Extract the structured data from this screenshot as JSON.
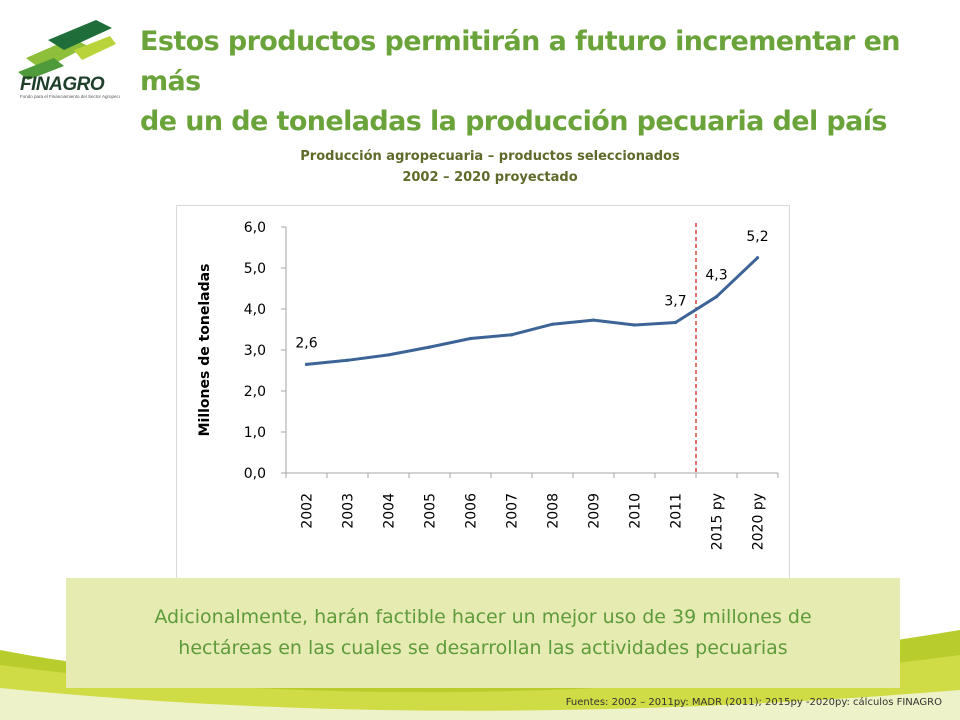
{
  "brand": {
    "name": "FINAGRO",
    "tagline": "Fondo para el Financiamiento del Sector Agropecuario"
  },
  "header": {
    "title_line1": "Estos productos permitirán a futuro incrementar en más",
    "title_line2": "de un de toneladas la producción pecuaria del país"
  },
  "chart_data": {
    "type": "line",
    "title": "Producción agropecuaria – productos seleccionados",
    "subtitle": "2002 – 2020 proyectado",
    "ylabel": "Millones de toneladas",
    "xlabel": "",
    "categories": [
      "2002",
      "2003",
      "2004",
      "2005",
      "2006",
      "2007",
      "2008",
      "2009",
      "2010",
      "2011",
      "2015 py",
      "2020 py"
    ],
    "series": [
      {
        "values": [
          2.65,
          2.75,
          2.88,
          3.07,
          3.28,
          3.37,
          3.63,
          3.73,
          3.61,
          3.67,
          4.3,
          5.25
        ]
      }
    ],
    "data_labels": [
      {
        "index": 0,
        "text": "2,6"
      },
      {
        "index": 9,
        "text": "3,7"
      },
      {
        "index": 10,
        "text": "4,3"
      },
      {
        "index": 11,
        "text": "5,2"
      }
    ],
    "yticks": [
      "0,0",
      "1,0",
      "2,0",
      "3,0",
      "4,0",
      "5,0",
      "6,0"
    ],
    "ylim": [
      0,
      6
    ],
    "grid": false,
    "projection_divider_after": "2011",
    "colors": {
      "line": "#3d6496",
      "divider": "#d9443f",
      "axis": "#a6a6a6"
    }
  },
  "callout": {
    "line1": "Adicionalmente, harán factible hacer un mejor uso de 39 millones de",
    "line2": "hectáreas en las cuales se desarrollan las actividades pecuarias"
  },
  "footer": {
    "source": "Fuentes: 2002 – 2011py: MADR (2011); 2015py -2020py: cálculos FINAGRO"
  },
  "colors": {
    "headline": "#6aa33a",
    "callout_bg": "#e6ebb2",
    "callout_text": "#5e9b3a",
    "swoosh": "#b8cc2c"
  }
}
